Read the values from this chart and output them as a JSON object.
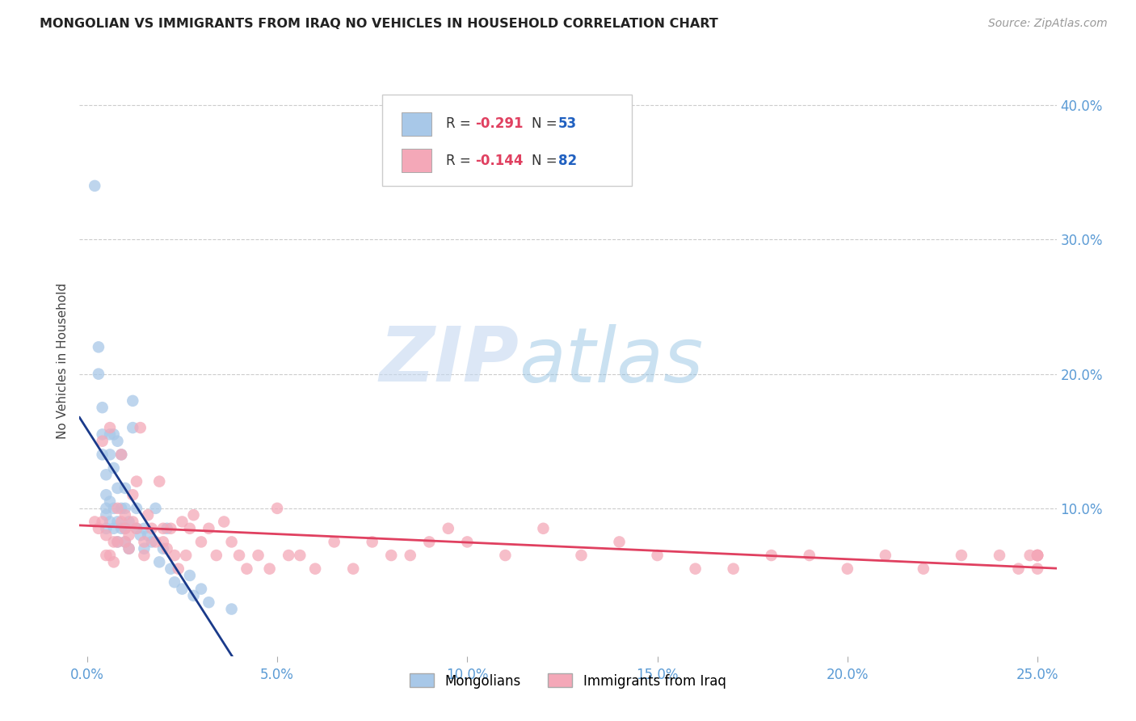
{
  "title": "MONGOLIAN VS IMMIGRANTS FROM IRAQ NO VEHICLES IN HOUSEHOLD CORRELATION CHART",
  "source": "Source: ZipAtlas.com",
  "ylabel_label": "No Vehicles in Household",
  "x_tick_labels": [
    "0.0%",
    "5.0%",
    "10.0%",
    "15.0%",
    "20.0%",
    "25.0%"
  ],
  "x_tick_values": [
    0.0,
    0.05,
    0.1,
    0.15,
    0.2,
    0.25
  ],
  "y_tick_labels": [
    "10.0%",
    "20.0%",
    "30.0%",
    "40.0%"
  ],
  "y_tick_values": [
    0.1,
    0.2,
    0.3,
    0.4
  ],
  "xlim": [
    -0.002,
    0.255
  ],
  "ylim": [
    -0.01,
    0.43
  ],
  "legend_mongolians": "Mongolians",
  "legend_iraq": "Immigrants from Iraq",
  "r_mongolian": -0.291,
  "n_mongolian": 53,
  "r_iraq": -0.144,
  "n_iraq": 82,
  "color_mongolian": "#a8c8e8",
  "color_iraq": "#f4a8b8",
  "line_color_mongolian": "#1a3a8a",
  "line_color_iraq": "#e04060",
  "background_color": "#ffffff",
  "grid_color": "#cccccc",
  "title_color": "#222222",
  "axis_label_color": "#5b9bd5",
  "mongolian_x": [
    0.002,
    0.003,
    0.003,
    0.004,
    0.004,
    0.004,
    0.005,
    0.005,
    0.005,
    0.005,
    0.005,
    0.006,
    0.006,
    0.006,
    0.006,
    0.007,
    0.007,
    0.007,
    0.007,
    0.008,
    0.008,
    0.008,
    0.008,
    0.009,
    0.009,
    0.009,
    0.01,
    0.01,
    0.01,
    0.01,
    0.011,
    0.011,
    0.012,
    0.012,
    0.013,
    0.013,
    0.014,
    0.015,
    0.015,
    0.016,
    0.017,
    0.018,
    0.019,
    0.02,
    0.021,
    0.022,
    0.023,
    0.025,
    0.027,
    0.028,
    0.03,
    0.032,
    0.038
  ],
  "mongolian_y": [
    0.34,
    0.22,
    0.2,
    0.175,
    0.155,
    0.14,
    0.125,
    0.11,
    0.1,
    0.095,
    0.085,
    0.155,
    0.14,
    0.105,
    0.09,
    0.155,
    0.13,
    0.1,
    0.085,
    0.15,
    0.115,
    0.09,
    0.075,
    0.14,
    0.1,
    0.085,
    0.115,
    0.1,
    0.085,
    0.075,
    0.09,
    0.07,
    0.18,
    0.16,
    0.1,
    0.085,
    0.08,
    0.085,
    0.07,
    0.08,
    0.075,
    0.1,
    0.06,
    0.07,
    0.085,
    0.055,
    0.045,
    0.04,
    0.05,
    0.035,
    0.04,
    0.03,
    0.025
  ],
  "iraq_x": [
    0.002,
    0.003,
    0.004,
    0.004,
    0.005,
    0.005,
    0.006,
    0.006,
    0.007,
    0.007,
    0.008,
    0.008,
    0.009,
    0.009,
    0.01,
    0.01,
    0.01,
    0.011,
    0.011,
    0.012,
    0.012,
    0.013,
    0.013,
    0.014,
    0.015,
    0.015,
    0.016,
    0.017,
    0.018,
    0.019,
    0.02,
    0.02,
    0.021,
    0.022,
    0.023,
    0.024,
    0.025,
    0.026,
    0.027,
    0.028,
    0.03,
    0.032,
    0.034,
    0.036,
    0.038,
    0.04,
    0.042,
    0.045,
    0.048,
    0.05,
    0.053,
    0.056,
    0.06,
    0.065,
    0.07,
    0.075,
    0.08,
    0.085,
    0.09,
    0.095,
    0.1,
    0.11,
    0.12,
    0.13,
    0.14,
    0.15,
    0.16,
    0.17,
    0.18,
    0.19,
    0.2,
    0.21,
    0.22,
    0.23,
    0.24,
    0.245,
    0.248,
    0.25,
    0.25,
    0.25,
    0.25,
    0.25
  ],
  "iraq_y": [
    0.09,
    0.085,
    0.15,
    0.09,
    0.08,
    0.065,
    0.16,
    0.065,
    0.075,
    0.06,
    0.1,
    0.075,
    0.14,
    0.09,
    0.095,
    0.085,
    0.075,
    0.08,
    0.07,
    0.11,
    0.09,
    0.12,
    0.085,
    0.16,
    0.075,
    0.065,
    0.095,
    0.085,
    0.075,
    0.12,
    0.085,
    0.075,
    0.07,
    0.085,
    0.065,
    0.055,
    0.09,
    0.065,
    0.085,
    0.095,
    0.075,
    0.085,
    0.065,
    0.09,
    0.075,
    0.065,
    0.055,
    0.065,
    0.055,
    0.1,
    0.065,
    0.065,
    0.055,
    0.075,
    0.055,
    0.075,
    0.065,
    0.065,
    0.075,
    0.085,
    0.075,
    0.065,
    0.085,
    0.065,
    0.075,
    0.065,
    0.055,
    0.055,
    0.065,
    0.065,
    0.055,
    0.065,
    0.055,
    0.065,
    0.065,
    0.055,
    0.065,
    0.065,
    0.055,
    0.065,
    0.065,
    0.065
  ]
}
